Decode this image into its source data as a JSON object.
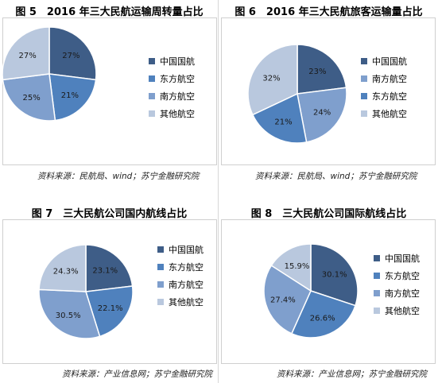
{
  "colors": {
    "中国国航": "#3e5d87",
    "东方航空": "#4f81bd",
    "南方航空": "#7f9fcd",
    "其他航空": "#b9c8de"
  },
  "chart_data": [
    {
      "type": "pie",
      "title": "图 5　2016 年三大民航运输周转量占比",
      "categories": [
        "中国国航",
        "东方航空",
        "南方航空",
        "其他航空"
      ],
      "values": [
        27,
        21,
        25,
        27
      ],
      "labels": [
        "27%",
        "21%",
        "25%",
        "27%"
      ],
      "legend_position": "right",
      "source": "资料来源：民航局、wind；苏宁金融研究院"
    },
    {
      "type": "pie",
      "title": "图 6　2016 年三大民航旅客运输量占比",
      "categories": [
        "中国国航",
        "南方航空",
        "东方航空",
        "其他航空"
      ],
      "values": [
        23,
        24,
        21,
        32
      ],
      "labels": [
        "23%",
        "24%",
        "21%",
        "32%"
      ],
      "legend_position": "right",
      "source": "资料来源：民航局、wind；苏宁金融研究院"
    },
    {
      "type": "pie",
      "title": "图 7　三大民航公司国内航线占比",
      "categories": [
        "中国国航",
        "东方航空",
        "南方航空",
        "其他航空"
      ],
      "values": [
        23.1,
        22.1,
        30.5,
        24.3
      ],
      "labels": [
        "23.1%",
        "22.1%",
        "30.5%",
        "24.3%"
      ],
      "legend_position": "right",
      "source": "资料来源：产业信息网；苏宁金融研究院"
    },
    {
      "type": "pie",
      "title": "图 8　三大民航公司国际航线占比",
      "categories": [
        "中国国航",
        "东方航空",
        "南方航空",
        "其他航空"
      ],
      "values": [
        30.1,
        26.6,
        27.4,
        15.9
      ],
      "labels": [
        "30.1%",
        "26.6%",
        "27.4%",
        "15.9%"
      ],
      "legend_position": "right",
      "source": "资料来源：产业信息网；苏宁金融研究院"
    }
  ]
}
